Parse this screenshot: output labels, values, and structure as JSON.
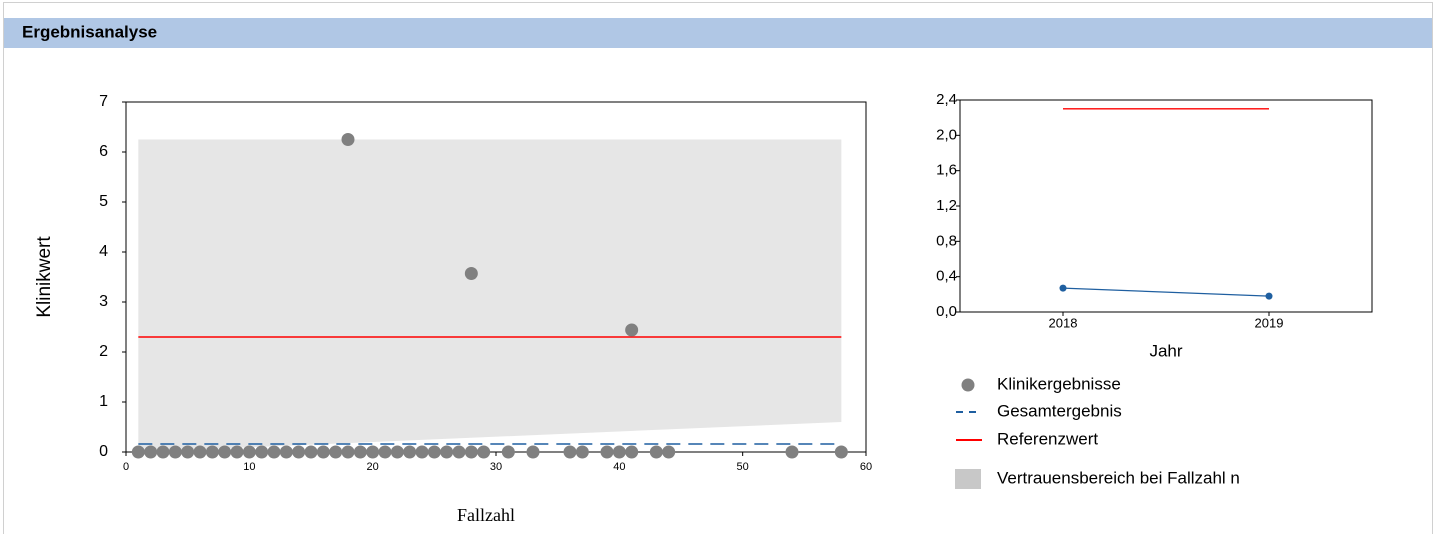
{
  "header": {
    "title": "Ergebnisanalyse"
  },
  "chart_data": [
    {
      "type": "scatter",
      "ylabel": "Klinikwert",
      "xlabel": "Fallzahl",
      "xlim": [
        0,
        60
      ],
      "ylim": [
        0,
        7
      ],
      "xticks": [
        0,
        10,
        20,
        30,
        40,
        50,
        60
      ],
      "yticks": [
        0,
        1,
        2,
        3,
        4,
        5,
        6,
        7
      ],
      "series": [
        {
          "name": "Vertrauensbereich bei Fallzahl n",
          "kind": "band",
          "color": "#c8c8c8",
          "x": [
            1,
            58
          ],
          "lower": [
            0,
            0.6
          ],
          "values": [
            6.25,
            6.25
          ]
        },
        {
          "name": "Referenzwert",
          "kind": "line",
          "color": "#ff0000",
          "x": [
            1,
            58
          ],
          "values": [
            2.3,
            2.3
          ]
        },
        {
          "name": "Gesamtergebnis",
          "kind": "line",
          "dashed": true,
          "color": "#1f5fa0",
          "x": [
            1,
            58
          ],
          "values": [
            0.16,
            0.16
          ]
        },
        {
          "name": "Klinikergebnisse",
          "kind": "points",
          "color": "#808080",
          "x": [
            1,
            2,
            3,
            4,
            5,
            6,
            7,
            8,
            9,
            10,
            11,
            12,
            13,
            14,
            15,
            16,
            17,
            18,
            19,
            20,
            21,
            22,
            23,
            24,
            25,
            26,
            27,
            28,
            29,
            31,
            33,
            36,
            37,
            39,
            40,
            41,
            43,
            44,
            54,
            58,
            18,
            28,
            41
          ],
          "values": [
            0,
            0,
            0,
            0,
            0,
            0,
            0,
            0,
            0,
            0,
            0,
            0,
            0,
            0,
            0,
            0,
            0,
            0,
            0,
            0,
            0,
            0,
            0,
            0,
            0,
            0,
            0,
            0,
            0,
            0,
            0,
            0,
            0,
            0,
            0,
            0,
            0,
            0,
            0,
            0,
            6.25,
            3.57,
            2.44
          ]
        }
      ]
    },
    {
      "type": "line",
      "xlabel": "Jahr",
      "categories": [
        "2018",
        "2019"
      ],
      "ylim": [
        0,
        2.4
      ],
      "yticks": [
        {
          "value": 0,
          "label": "0,0"
        },
        {
          "value": 0.4,
          "label": "0,4"
        },
        {
          "value": 0.8,
          "label": "0,8"
        },
        {
          "value": 1.2,
          "label": "1,2"
        },
        {
          "value": 1.6,
          "label": "1,6"
        },
        {
          "value": 2.0,
          "label": "2,0"
        },
        {
          "value": 2.4,
          "label": "2,4"
        }
      ],
      "series": [
        {
          "color": "#ff0000",
          "markers": false,
          "values": [
            2.3,
            2.3
          ]
        },
        {
          "color": "#1f5fa0",
          "markers": true,
          "values": [
            0.27,
            0.18
          ]
        }
      ]
    }
  ]
}
